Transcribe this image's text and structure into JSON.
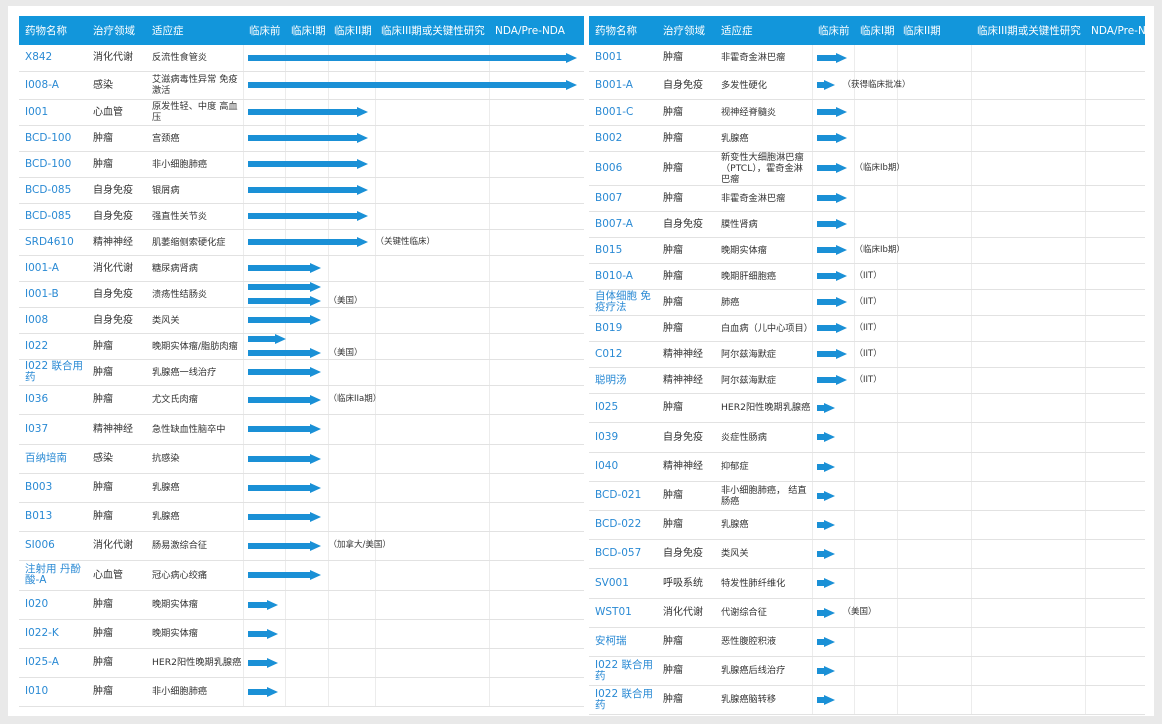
{
  "headers_left": [
    "药物名称",
    "治疗领域",
    "适应症",
    "临床前",
    "临床I期",
    "临床II期",
    "临床III期或关键性研究",
    "NDA/Pre-NDA"
  ],
  "headers_right": [
    "药物名称",
    "治疗领域",
    "适应症",
    "临床前",
    "临床I期",
    "临床II期",
    "临床III期或关键性研究",
    "NDA/Pre-NDA"
  ],
  "arrow_color": "#1a90d6",
  "header_color": "#1296db",
  "left_rows": [
    {
      "drug": "X842",
      "area": "消化代谢",
      "indication": "反流性食管炎",
      "arrows": [
        {
          "stage": 5,
          "note": ""
        }
      ]
    },
    {
      "drug": "I008-A",
      "area": "感染",
      "indication": "艾滋病毒性异常 免疫激活",
      "arrows": [
        {
          "stage": 5,
          "note": ""
        }
      ]
    },
    {
      "drug": "I001",
      "area": "心血管",
      "indication": "原发性轻、中度 高血压",
      "arrows": [
        {
          "stage": 3,
          "note": ""
        }
      ]
    },
    {
      "drug": "BCD-100",
      "area": "肿瘤",
      "indication": "宫颈癌",
      "arrows": [
        {
          "stage": 3,
          "note": ""
        }
      ]
    },
    {
      "drug": "BCD-100",
      "area": "肿瘤",
      "indication": "非小细胞肺癌",
      "arrows": [
        {
          "stage": 3,
          "note": ""
        }
      ]
    },
    {
      "drug": "BCD-085",
      "area": "自身免疫",
      "indication": "银屑病",
      "arrows": [
        {
          "stage": 3,
          "note": ""
        }
      ]
    },
    {
      "drug": "BCD-085",
      "area": "自身免疫",
      "indication": "强直性关节炎",
      "arrows": [
        {
          "stage": 3,
          "note": ""
        }
      ]
    },
    {
      "drug": "SRD4610",
      "area": "精神神经",
      "indication": "肌萎缩侧索硬化症",
      "arrows": [
        {
          "stage": 3,
          "note": "（关键性临床）"
        }
      ]
    },
    {
      "drug": "I001-A",
      "area": "消化代谢",
      "indication": "糖尿病肾病",
      "arrows": [
        {
          "stage": 2,
          "note": ""
        }
      ]
    },
    {
      "drug": "I001-B",
      "area": "自身免疫",
      "indication": "溃疡性结肠炎",
      "arrows": [
        {
          "stage": 2,
          "note": ""
        },
        {
          "stage": 2,
          "note": "（美国）"
        }
      ]
    },
    {
      "drug": "I008",
      "area": "自身免疫",
      "indication": "类风关",
      "arrows": [
        {
          "stage": 2,
          "note": ""
        }
      ]
    },
    {
      "drug": "I022",
      "area": "肿瘤",
      "indication": "晚期实体瘤/脂肪肉瘤",
      "arrows": [
        {
          "stage": 1.2,
          "note": ""
        },
        {
          "stage": 2,
          "note": "（美国）"
        }
      ]
    },
    {
      "drug": "I022 联合用药",
      "area": "肿瘤",
      "indication": "乳腺癌一线治疗",
      "arrows": [
        {
          "stage": 2,
          "note": ""
        }
      ]
    },
    {
      "drug": "I036",
      "area": "肿瘤",
      "indication": "尤文氏肉瘤",
      "arrows": [
        {
          "stage": 2,
          "note": "（临床IIa期）"
        }
      ]
    },
    {
      "drug": "I037",
      "area": "精神神经",
      "indication": "急性缺血性脑卒中",
      "arrows": [
        {
          "stage": 2,
          "note": ""
        }
      ]
    },
    {
      "drug": "百纳培南",
      "area": "感染",
      "indication": "抗感染",
      "arrows": [
        {
          "stage": 2,
          "note": ""
        }
      ]
    },
    {
      "drug": "B003",
      "area": "肿瘤",
      "indication": "乳腺癌",
      "arrows": [
        {
          "stage": 2,
          "note": ""
        }
      ]
    },
    {
      "drug": "B013",
      "area": "肿瘤",
      "indication": "乳腺癌",
      "arrows": [
        {
          "stage": 2,
          "note": ""
        }
      ]
    },
    {
      "drug": "SI006",
      "area": "消化代谢",
      "indication": "肠易激综合征",
      "arrows": [
        {
          "stage": 2,
          "note": "（加拿大/美国）"
        }
      ]
    },
    {
      "drug": "注射用 丹酚酸-A",
      "area": "心血管",
      "indication": "冠心病心绞痛",
      "arrows": [
        {
          "stage": 2,
          "note": ""
        }
      ]
    },
    {
      "drug": "I020",
      "area": "肿瘤",
      "indication": "晚期实体瘤",
      "arrows": [
        {
          "stage": 1,
          "note": ""
        }
      ]
    },
    {
      "drug": "I022-K",
      "area": "肿瘤",
      "indication": "晚期实体瘤",
      "arrows": [
        {
          "stage": 1,
          "note": ""
        }
      ]
    },
    {
      "drug": "I025-A",
      "area": "肿瘤",
      "indication": "HER2阳性晚期乳腺癌",
      "arrows": [
        {
          "stage": 1,
          "note": ""
        }
      ]
    },
    {
      "drug": "I010",
      "area": "肿瘤",
      "indication": "非小细胞肺癌",
      "arrows": [
        {
          "stage": 1,
          "note": ""
        }
      ]
    }
  ],
  "right_rows": [
    {
      "drug": "B001",
      "area": "肿瘤",
      "indication": "非霍奇金淋巴瘤",
      "arrows": [
        {
          "stage": 1,
          "note": ""
        }
      ]
    },
    {
      "drug": "B001-A",
      "area": "自身免疫",
      "indication": "多发性硬化",
      "arrows": [
        {
          "stage": 0.6,
          "note": "（获得临床批准）"
        }
      ]
    },
    {
      "drug": "B001-C",
      "area": "肿瘤",
      "indication": "视神经脊髓炎",
      "arrows": [
        {
          "stage": 1,
          "note": ""
        }
      ]
    },
    {
      "drug": "B002",
      "area": "肿瘤",
      "indication": "乳腺癌",
      "arrows": [
        {
          "stage": 1,
          "note": ""
        }
      ]
    },
    {
      "drug": "B006",
      "area": "肿瘤",
      "indication": "新变性大细胞淋巴瘤 （PTCL），霍奇金淋巴瘤",
      "arrows": [
        {
          "stage": 1,
          "note": "（临床Ib期）"
        }
      ]
    },
    {
      "drug": "B007",
      "area": "肿瘤",
      "indication": "非霍奇金淋巴瘤",
      "arrows": [
        {
          "stage": 1,
          "note": ""
        }
      ]
    },
    {
      "drug": "B007-A",
      "area": "自身免疫",
      "indication": "膜性肾病",
      "arrows": [
        {
          "stage": 1,
          "note": ""
        }
      ]
    },
    {
      "drug": "B015",
      "area": "肿瘤",
      "indication": "晚期实体瘤",
      "arrows": [
        {
          "stage": 1,
          "note": "（临床Ib期）"
        }
      ]
    },
    {
      "drug": "B010-A",
      "area": "肿瘤",
      "indication": "晚期肝细胞癌",
      "arrows": [
        {
          "stage": 1,
          "note": "（IIT）"
        }
      ]
    },
    {
      "drug": "自体细胞 免疫疗法",
      "area": "肿瘤",
      "indication": "肺癌",
      "arrows": [
        {
          "stage": 1,
          "note": "（IIT）"
        }
      ]
    },
    {
      "drug": "B019",
      "area": "肿瘤",
      "indication": "白血病（儿中心项目）",
      "arrows": [
        {
          "stage": 1,
          "note": "（IIT）"
        }
      ]
    },
    {
      "drug": "C012",
      "area": "精神神经",
      "indication": "阿尔兹海默症",
      "arrows": [
        {
          "stage": 1,
          "note": "（IIT）"
        }
      ]
    },
    {
      "drug": "聪明汤",
      "area": "精神神经",
      "indication": "阿尔兹海默症",
      "arrows": [
        {
          "stage": 1,
          "note": "（IIT）"
        }
      ]
    },
    {
      "drug": "I025",
      "area": "肿瘤",
      "indication": "HER2阳性晚期乳腺癌",
      "arrows": [
        {
          "stage": 0.4,
          "note": ""
        }
      ]
    },
    {
      "drug": "I039",
      "area": "自身免疫",
      "indication": "炎症性肠病",
      "arrows": [
        {
          "stage": 0.4,
          "note": ""
        }
      ]
    },
    {
      "drug": "I040",
      "area": "精神神经",
      "indication": "抑郁症",
      "arrows": [
        {
          "stage": 0.4,
          "note": ""
        }
      ]
    },
    {
      "drug": "BCD-021",
      "area": "肿瘤",
      "indication": "非小细胞肺癌， 结直肠癌",
      "arrows": [
        {
          "stage": 0.4,
          "note": ""
        }
      ]
    },
    {
      "drug": "BCD-022",
      "area": "肿瘤",
      "indication": "乳腺癌",
      "arrows": [
        {
          "stage": 0.4,
          "note": ""
        }
      ]
    },
    {
      "drug": "BCD-057",
      "area": "自身免疫",
      "indication": "类风关",
      "arrows": [
        {
          "stage": 0.4,
          "note": ""
        }
      ]
    },
    {
      "drug": "SV001",
      "area": "呼吸系统",
      "indication": "特发性肺纤维化",
      "arrows": [
        {
          "stage": 0.4,
          "note": ""
        }
      ]
    },
    {
      "drug": "WST01",
      "area": "消化代谢",
      "indication": "代谢综合征",
      "arrows": [
        {
          "stage": 0.4,
          "note": "（美国）"
        }
      ]
    },
    {
      "drug": "安柯瑞",
      "area": "肿瘤",
      "indication": "恶性腹腔积液",
      "arrows": [
        {
          "stage": 0.4,
          "note": ""
        }
      ]
    },
    {
      "drug": "I022 联合用药",
      "area": "肿瘤",
      "indication": "乳腺癌后线治疗",
      "arrows": [
        {
          "stage": 0.4,
          "note": ""
        }
      ]
    },
    {
      "drug": "I022 联合用药",
      "area": "肿瘤",
      "indication": "乳腺癌脑转移",
      "arrows": [
        {
          "stage": 0.4,
          "note": ""
        }
      ]
    }
  ]
}
